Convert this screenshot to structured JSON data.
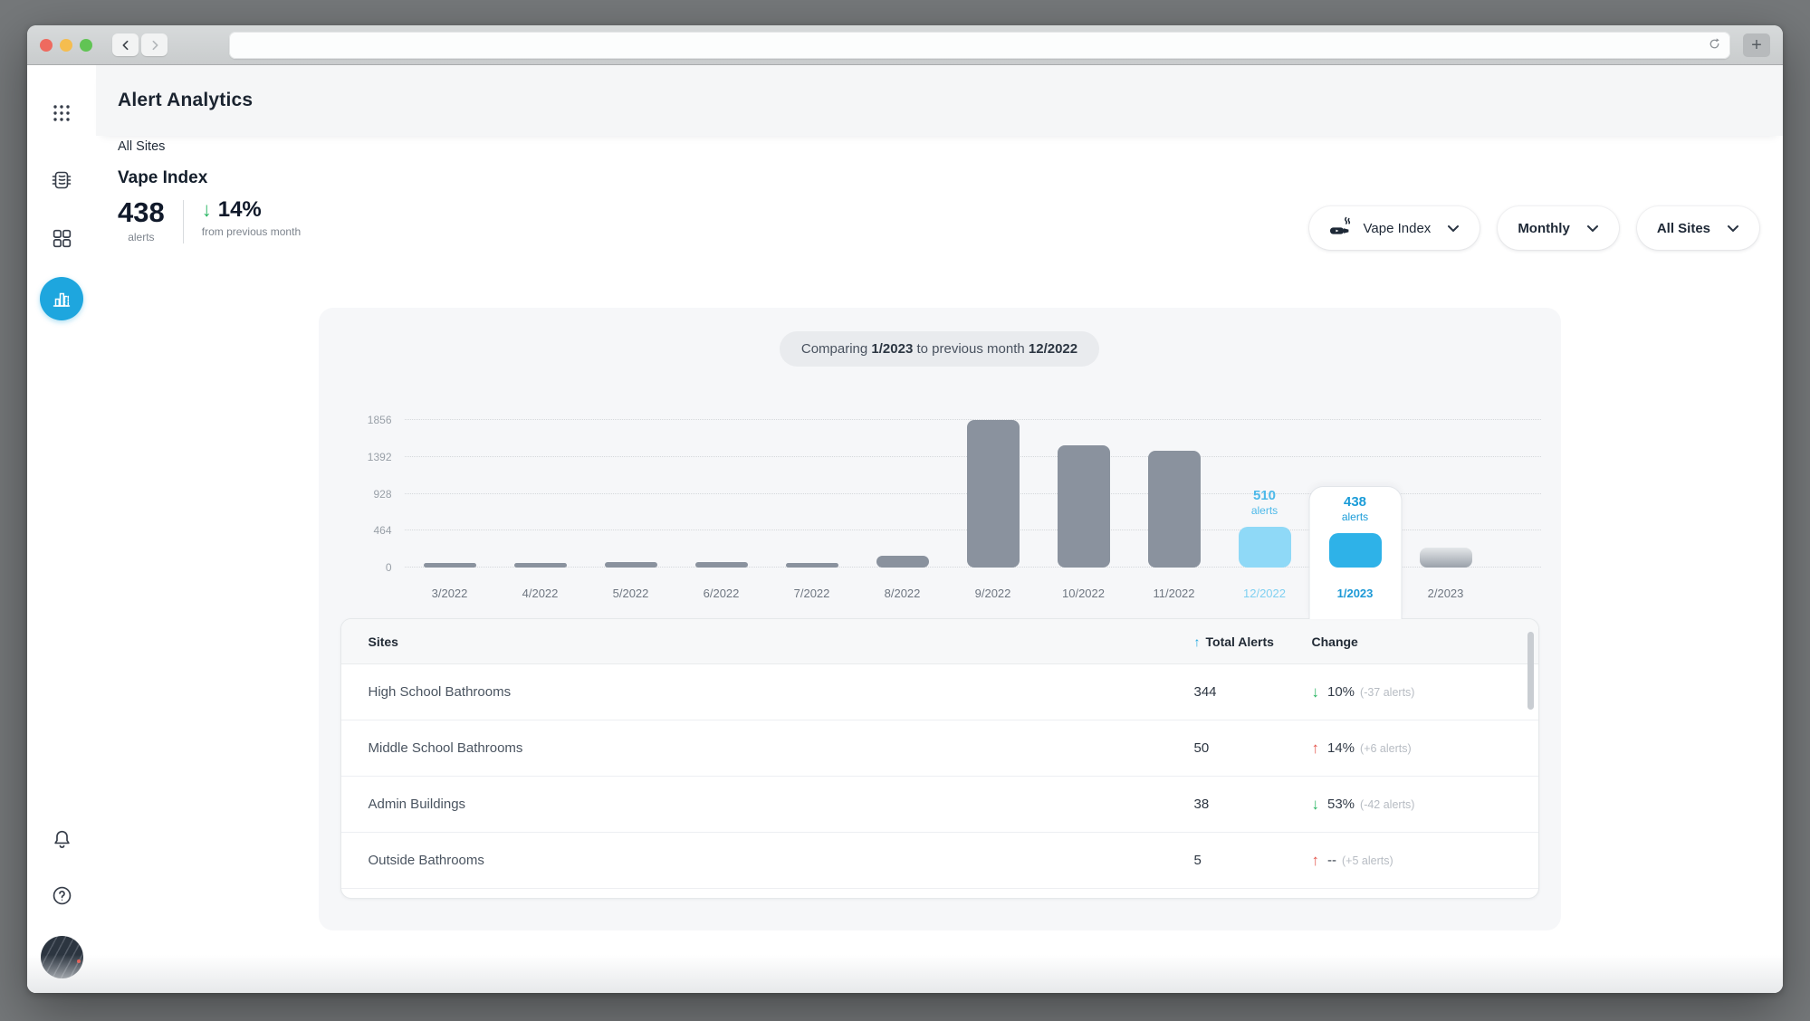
{
  "browser": {
    "url_text": "",
    "new_tab_label": "+"
  },
  "header": {
    "title": "Alert Analytics"
  },
  "page": {
    "scope_label": "All Sites",
    "metric_title": "Vape Index",
    "kpi": {
      "value": "438",
      "unit": "alerts",
      "change_direction": "down",
      "change_pct": "14%",
      "change_caption": "from previous month"
    },
    "filters": [
      {
        "label": "Vape Index",
        "icon": "vape-icon"
      },
      {
        "label": "Monthly"
      },
      {
        "label": "All Sites"
      }
    ]
  },
  "chart": {
    "comparison": {
      "prefix": "Comparing",
      "current": "1/2023",
      "middle": "to previous month",
      "previous": "12/2022"
    }
  },
  "chart_data": {
    "type": "bar",
    "title": "Vape Index alerts by month",
    "categories": [
      "3/2022",
      "4/2022",
      "5/2022",
      "6/2022",
      "7/2022",
      "8/2022",
      "9/2022",
      "10/2022",
      "11/2022",
      "12/2022",
      "1/2023",
      "2/2023"
    ],
    "values": [
      55,
      55,
      70,
      70,
      45,
      150,
      1856,
      1540,
      1470,
      510,
      438,
      250
    ],
    "bar_styles": [
      "gray",
      "gray",
      "gray",
      "gray",
      "gray",
      "gray",
      "gray",
      "gray",
      "gray",
      "previous",
      "selected",
      "partial"
    ],
    "bar_labels": {
      "12/2022": {
        "value": "510",
        "unit": "alerts"
      },
      "1/2023": {
        "value": "438",
        "unit": "alerts"
      }
    },
    "xlabel": "",
    "ylabel": "",
    "yticks": [
      0,
      464,
      928,
      1392,
      1856
    ],
    "ylim": [
      0,
      1856
    ],
    "grid": "dotted-horizontal",
    "legend": "none"
  },
  "table": {
    "columns": [
      "Sites",
      "Total Alerts",
      "Change"
    ],
    "sorted_by": "Total Alerts",
    "rows": [
      {
        "site": "High School Bathrooms",
        "total": "344",
        "direction": "down",
        "pct": "10%",
        "delta": "(-37 alerts)"
      },
      {
        "site": "Middle School Bathrooms",
        "total": "50",
        "direction": "up",
        "pct": "14%",
        "delta": "(+6 alerts)"
      },
      {
        "site": "Admin Buildings",
        "total": "38",
        "direction": "down",
        "pct": "53%",
        "delta": "(-42 alerts)"
      },
      {
        "site": "Outside Bathrooms",
        "total": "5",
        "direction": "up",
        "pct": "--",
        "delta": "(+5 alerts)"
      }
    ]
  },
  "icons": {
    "up_arrow": "↑",
    "down_arrow": "↓"
  },
  "colors": {
    "accent_blue": "#1ea6de",
    "bar_gray": "#8a929e",
    "bar_lightblue": "#8fd9f7",
    "bar_blue": "#2eb2e8",
    "green": "#27b561",
    "red": "#e4554b"
  }
}
